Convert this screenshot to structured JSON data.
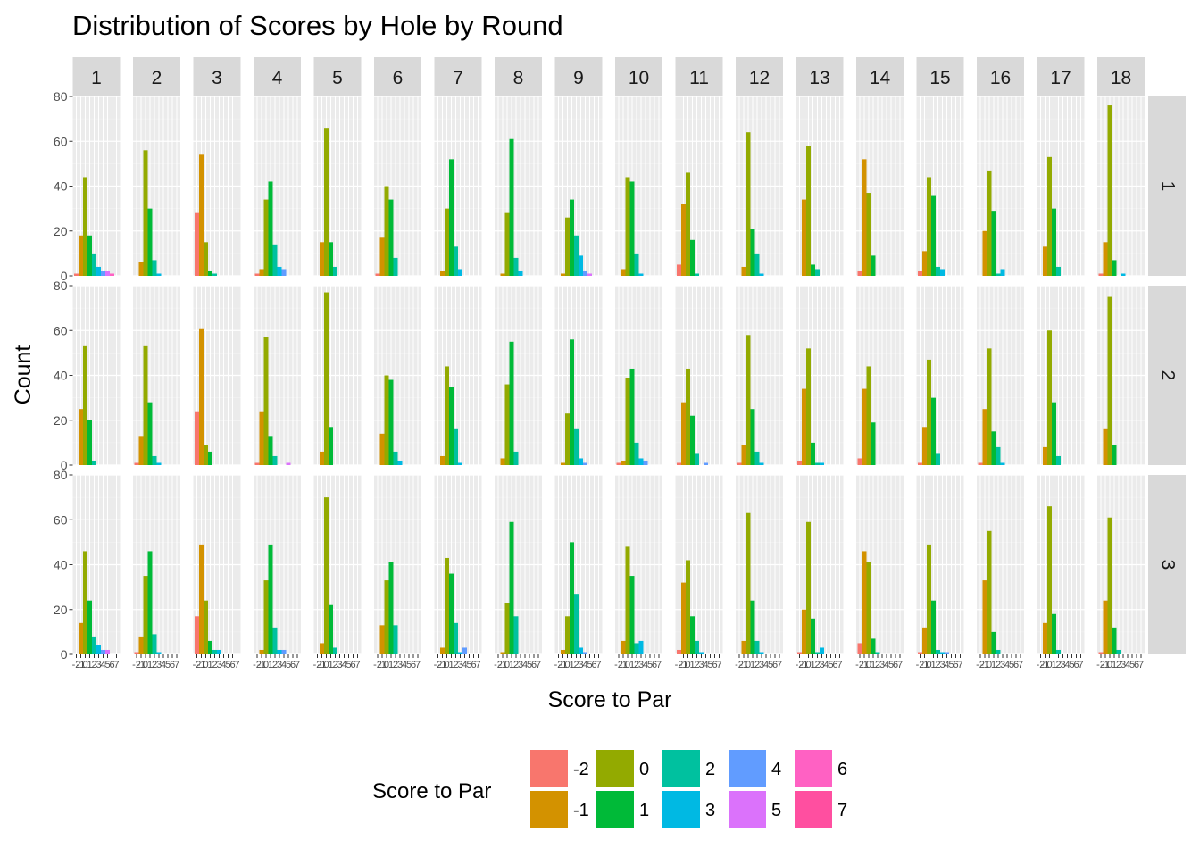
{
  "chart_data": {
    "type": "bar",
    "facet": "grid",
    "title": "Distribution of Scores by Hole by Round",
    "xlabel": "Score to Par",
    "ylabel": "Count",
    "ylim": [
      0,
      80
    ],
    "y_ticks": [
      0,
      20,
      40,
      60,
      80
    ],
    "x_categories": [
      "-2",
      "-1",
      "0",
      "1",
      "2",
      "3",
      "4",
      "5",
      "6",
      "7"
    ],
    "x_tick_labels": [
      "-2",
      "-1",
      "0",
      "1",
      "2",
      "3",
      "4",
      "5",
      "6",
      "7"
    ],
    "column_facets": [
      "1",
      "2",
      "3",
      "4",
      "5",
      "6",
      "7",
      "8",
      "9",
      "10",
      "11",
      "12",
      "13",
      "14",
      "15",
      "16",
      "17",
      "18"
    ],
    "row_facets": [
      "1",
      "2",
      "3"
    ],
    "grid": true,
    "legend": {
      "title": "Score to Par",
      "position": "bottom",
      "entries": [
        {
          "label": "-2",
          "color": "#F8766D"
        },
        {
          "label": "-1",
          "color": "#D39200"
        },
        {
          "label": "0",
          "color": "#93AA00"
        },
        {
          "label": "1",
          "color": "#00BA38"
        },
        {
          "label": "2",
          "color": "#00C19F"
        },
        {
          "label": "3",
          "color": "#00B9E3"
        },
        {
          "label": "4",
          "color": "#619CFF"
        },
        {
          "label": "5",
          "color": "#DB72FB"
        },
        {
          "label": "6",
          "color": "#FF61C3"
        },
        {
          "label": "7",
          "color": "#F8766D"
        }
      ]
    },
    "palette": [
      "#F8766D",
      "#D39200",
      "#93AA00",
      "#00BA38",
      "#00C19F",
      "#00B9E3",
      "#619CFF",
      "#DB72FB",
      "#FF61C3",
      "#FF4FA0"
    ],
    "panels": [
      [
        [
          1,
          18,
          44,
          18,
          10,
          4,
          2,
          2,
          1,
          0
        ],
        [
          0,
          6,
          56,
          30,
          7,
          1,
          0,
          0,
          0,
          0
        ],
        [
          28,
          54,
          15,
          2,
          1,
          0,
          0,
          0,
          0,
          0
        ],
        [
          1,
          3,
          34,
          42,
          14,
          4,
          3,
          0,
          0,
          0
        ],
        [
          0,
          15,
          66,
          15,
          4,
          0,
          0,
          0,
          0,
          0
        ],
        [
          1,
          17,
          40,
          34,
          8,
          0,
          0,
          0,
          0,
          0
        ],
        [
          0,
          2,
          30,
          52,
          13,
          3,
          0,
          0,
          0,
          0
        ],
        [
          0,
          1,
          28,
          61,
          8,
          2,
          0,
          0,
          0,
          0
        ],
        [
          0,
          1,
          26,
          34,
          18,
          9,
          2,
          1,
          0,
          0
        ],
        [
          0,
          3,
          44,
          42,
          10,
          1,
          0,
          0,
          0,
          0
        ],
        [
          5,
          32,
          46,
          16,
          1,
          0,
          0,
          0,
          0,
          0
        ],
        [
          0,
          4,
          64,
          21,
          10,
          1,
          0,
          0,
          0,
          0
        ],
        [
          0,
          34,
          58,
          5,
          3,
          0,
          0,
          0,
          0,
          0
        ],
        [
          2,
          52,
          37,
          9,
          0,
          0,
          0,
          0,
          0,
          0
        ],
        [
          2,
          11,
          44,
          36,
          4,
          3,
          0,
          0,
          0,
          0
        ],
        [
          0,
          20,
          47,
          29,
          1,
          3,
          0,
          0,
          0,
          0
        ],
        [
          0,
          13,
          53,
          30,
          4,
          0,
          0,
          0,
          0,
          0
        ],
        [
          1,
          15,
          76,
          7,
          0,
          1,
          0,
          0,
          0,
          0
        ]
      ],
      [
        [
          0,
          25,
          53,
          20,
          2,
          0,
          0,
          0,
          0,
          0
        ],
        [
          1,
          13,
          53,
          28,
          4,
          1,
          0,
          0,
          0,
          0
        ],
        [
          24,
          61,
          9,
          6,
          0,
          0,
          0,
          0,
          0,
          0
        ],
        [
          1,
          24,
          57,
          13,
          4,
          0,
          0,
          1,
          0,
          0
        ],
        [
          0,
          6,
          77,
          17,
          0,
          0,
          0,
          0,
          0,
          0
        ],
        [
          0,
          14,
          40,
          38,
          6,
          2,
          0,
          0,
          0,
          0
        ],
        [
          0,
          4,
          44,
          35,
          16,
          1,
          0,
          0,
          0,
          0
        ],
        [
          0,
          3,
          36,
          55,
          6,
          0,
          0,
          0,
          0,
          0
        ],
        [
          0,
          1,
          23,
          56,
          16,
          3,
          1,
          0,
          0,
          0
        ],
        [
          1,
          2,
          39,
          43,
          10,
          3,
          2,
          0,
          0,
          0
        ],
        [
          1,
          28,
          43,
          22,
          5,
          0,
          1,
          0,
          0,
          0
        ],
        [
          1,
          9,
          58,
          25,
          6,
          1,
          0,
          0,
          0,
          0
        ],
        [
          2,
          34,
          52,
          10,
          1,
          1,
          0,
          0,
          0,
          0
        ],
        [
          3,
          34,
          44,
          19,
          0,
          0,
          0,
          0,
          0,
          0
        ],
        [
          1,
          17,
          47,
          30,
          5,
          0,
          0,
          0,
          0,
          0
        ],
        [
          1,
          25,
          52,
          15,
          8,
          1,
          0,
          0,
          0,
          0
        ],
        [
          0,
          8,
          60,
          28,
          4,
          0,
          0,
          0,
          0,
          0
        ],
        [
          0,
          16,
          75,
          9,
          0,
          0,
          0,
          0,
          0,
          0
        ]
      ],
      [
        [
          0,
          14,
          46,
          24,
          8,
          4,
          2,
          2,
          0,
          0
        ],
        [
          1,
          8,
          35,
          46,
          9,
          1,
          0,
          0,
          0,
          0
        ],
        [
          17,
          49,
          24,
          6,
          2,
          2,
          0,
          0,
          0,
          0
        ],
        [
          0,
          2,
          33,
          49,
          12,
          2,
          2,
          0,
          0,
          0
        ],
        [
          0,
          5,
          70,
          22,
          3,
          0,
          0,
          0,
          0,
          0
        ],
        [
          0,
          13,
          33,
          41,
          13,
          0,
          0,
          0,
          0,
          0
        ],
        [
          0,
          3,
          43,
          36,
          14,
          1,
          3,
          0,
          0,
          0
        ],
        [
          0,
          1,
          23,
          59,
          17,
          0,
          0,
          0,
          0,
          0
        ],
        [
          0,
          2,
          17,
          50,
          27,
          3,
          1,
          0,
          0,
          0
        ],
        [
          0,
          6,
          48,
          35,
          5,
          6,
          0,
          0,
          0,
          0
        ],
        [
          2,
          32,
          42,
          17,
          6,
          1,
          0,
          0,
          0,
          0
        ],
        [
          0,
          6,
          63,
          24,
          6,
          1,
          0,
          0,
          0,
          0
        ],
        [
          1,
          20,
          59,
          16,
          1,
          3,
          0,
          0,
          0,
          0
        ],
        [
          5,
          46,
          41,
          7,
          1,
          0,
          0,
          0,
          0,
          0
        ],
        [
          1,
          12,
          49,
          24,
          2,
          1,
          1,
          0,
          0,
          0
        ],
        [
          0,
          33,
          55,
          10,
          2,
          0,
          0,
          0,
          0,
          0
        ],
        [
          0,
          14,
          66,
          18,
          2,
          0,
          0,
          0,
          0,
          0
        ],
        [
          1,
          24,
          61,
          12,
          2,
          0,
          0,
          0,
          0,
          0
        ]
      ]
    ]
  }
}
